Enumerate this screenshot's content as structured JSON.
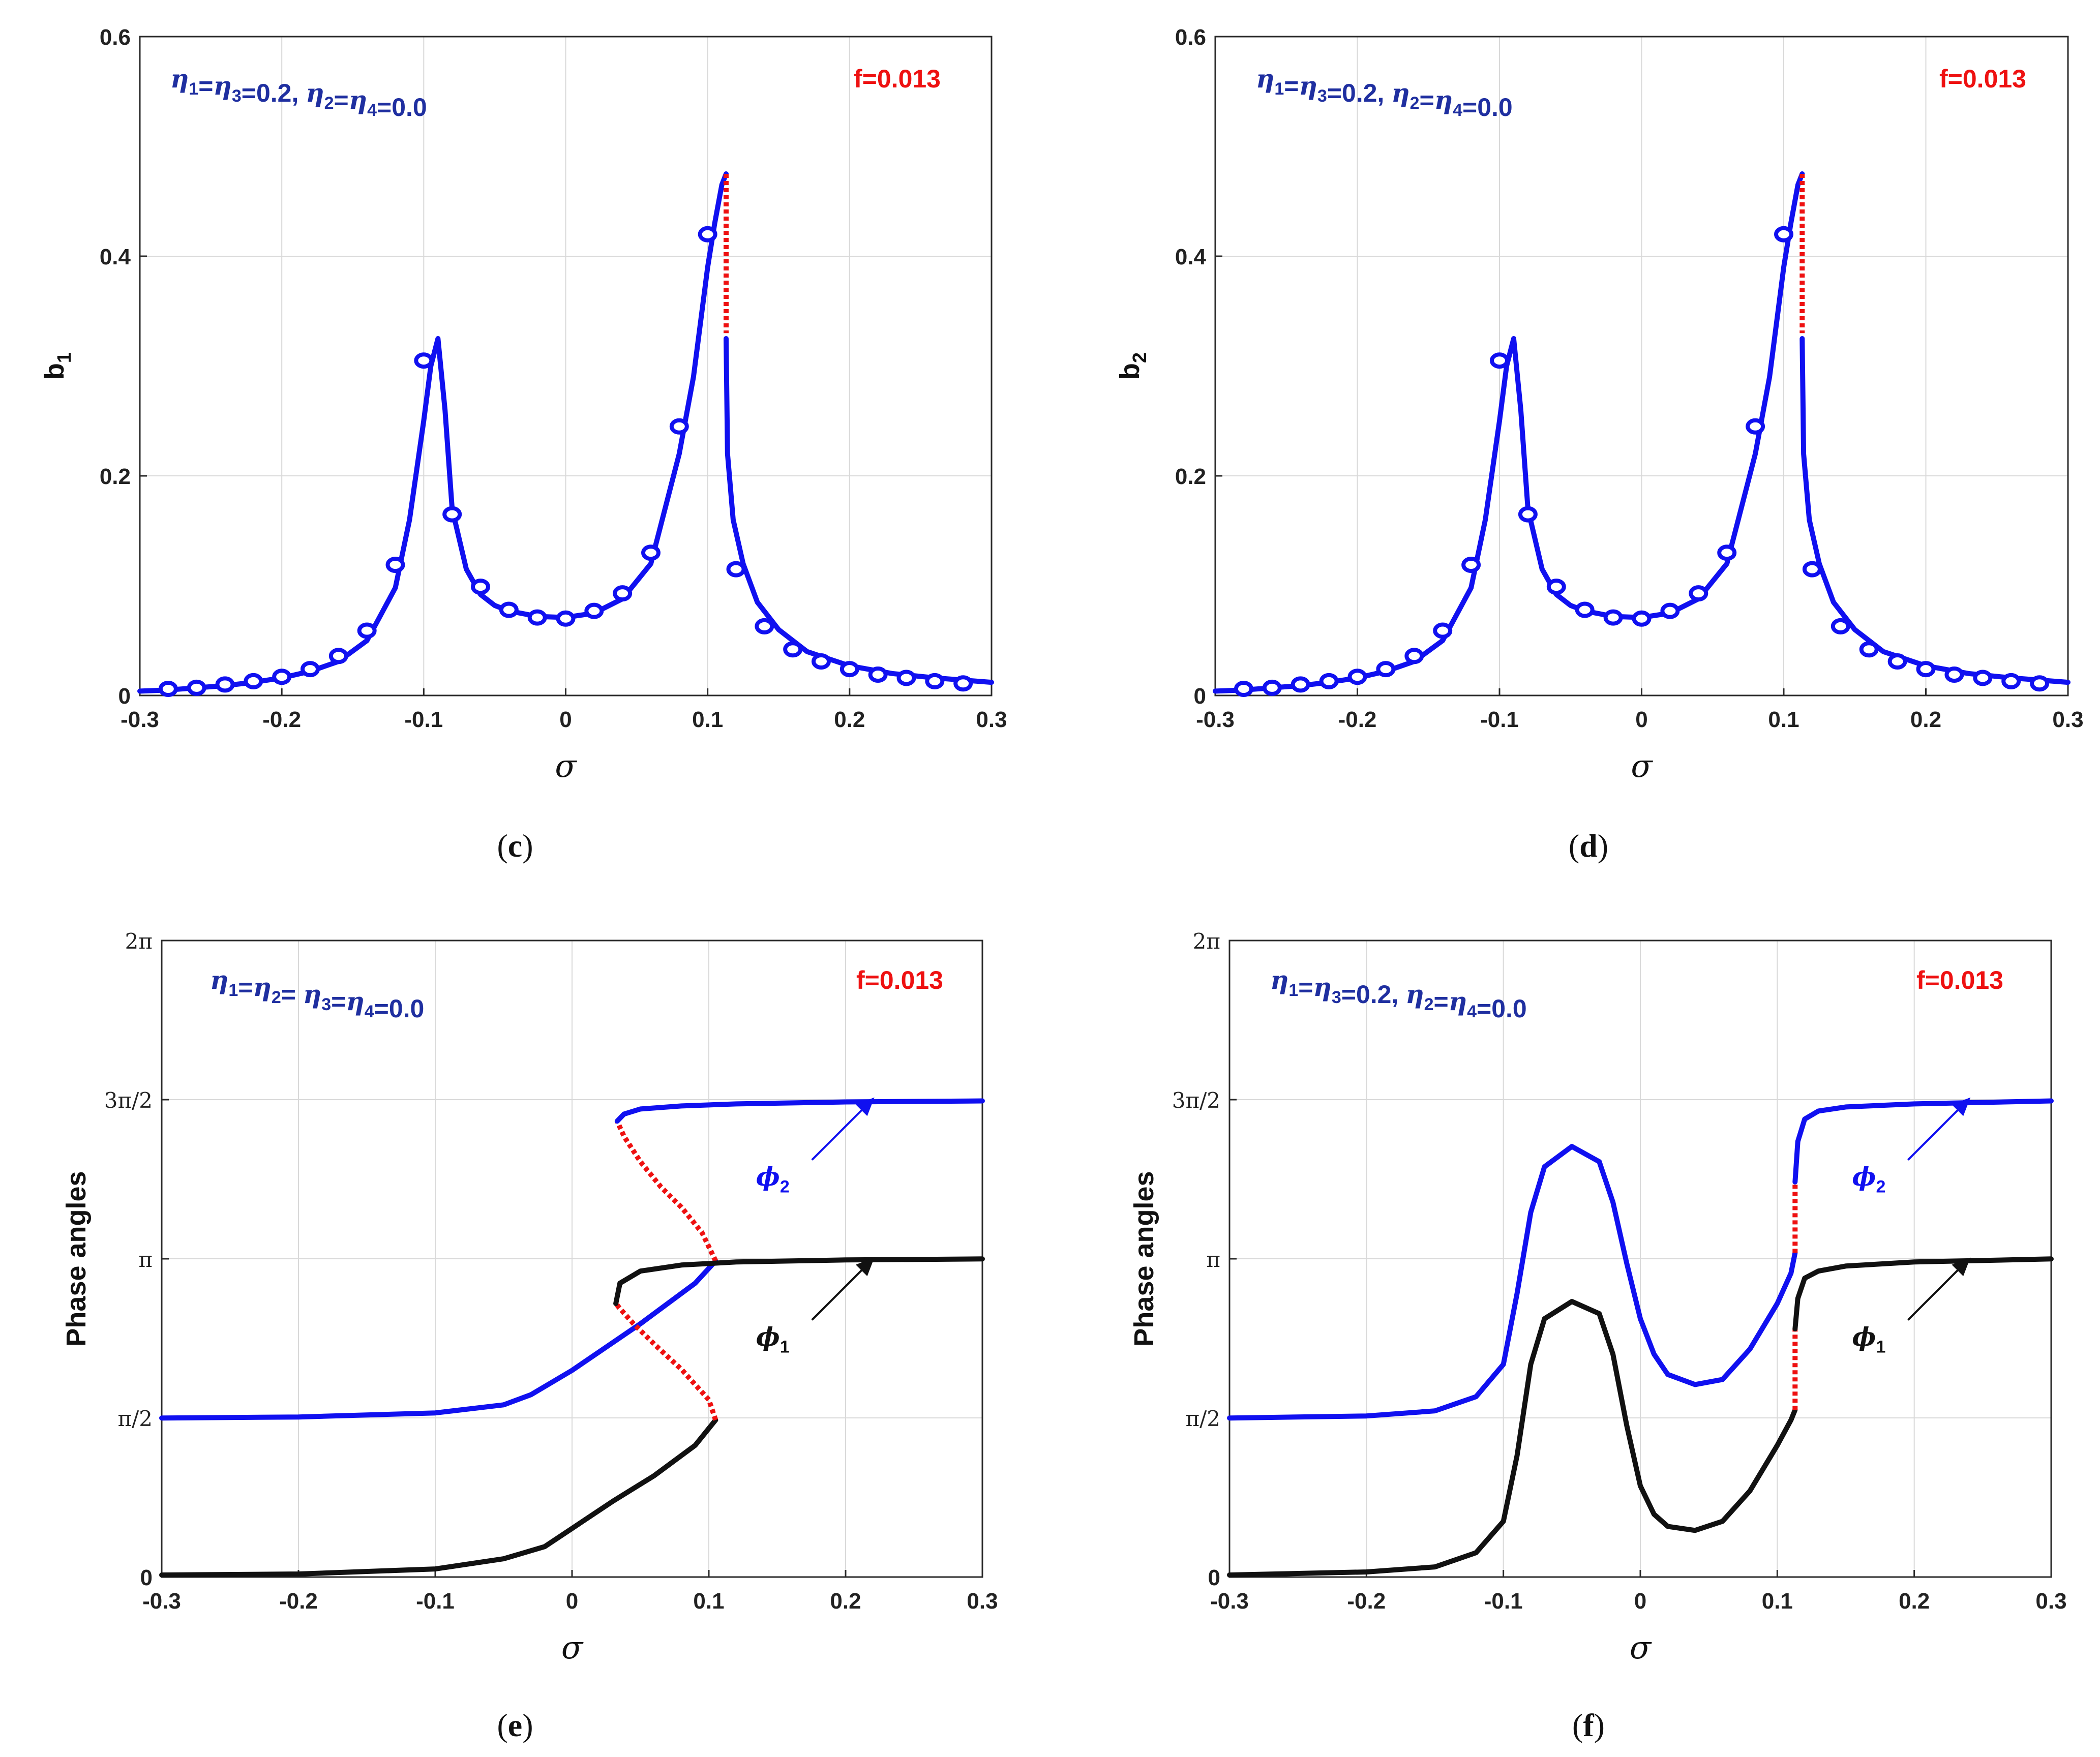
{
  "chart_data": [
    {
      "id": "c",
      "type": "line",
      "caption_letter": "c",
      "ylabel_main": "b",
      "ylabel_sub": "1",
      "xlabel": "σ",
      "xlim": [
        -0.3,
        0.3
      ],
      "ylim": [
        0,
        0.6
      ],
      "xticks": [
        "-0.3",
        "-0.2",
        "-0.1",
        "0",
        "0.1",
        "0.2",
        "0.3"
      ],
      "yticks": [
        "0",
        "0.2",
        "0.4",
        "0.6"
      ],
      "annotation_left": "η1=η3=0.2,  η2=η4=0.0",
      "annotation_right": "f=0.013",
      "series": [
        {
          "name": "stable-branch-1",
          "color": "#1010f0",
          "style": "solid",
          "x": [
            -0.3,
            -0.28,
            -0.26,
            -0.24,
            -0.22,
            -0.2,
            -0.18,
            -0.16,
            -0.14,
            -0.12,
            -0.11,
            -0.1,
            -0.095,
            -0.09,
            -0.085,
            -0.08,
            -0.07,
            -0.06,
            -0.05,
            -0.04,
            -0.02,
            0,
            0.02,
            0.04,
            0.06,
            0.08,
            0.09,
            0.1,
            0.105,
            0.11,
            0.113
          ],
          "y": [
            0.004,
            0.005,
            0.007,
            0.009,
            0.012,
            0.016,
            0.022,
            0.031,
            0.05,
            0.098,
            0.16,
            0.25,
            0.3,
            0.325,
            0.26,
            0.17,
            0.115,
            0.092,
            0.082,
            0.077,
            0.072,
            0.071,
            0.075,
            0.088,
            0.12,
            0.22,
            0.29,
            0.39,
            0.43,
            0.465,
            0.475
          ]
        },
        {
          "name": "unstable-branch",
          "color": "#ee1111",
          "style": "dotted",
          "x": [
            0.113,
            0.113
          ],
          "y": [
            0.475,
            0.33
          ]
        },
        {
          "name": "stable-branch-2",
          "color": "#1010f0",
          "style": "solid",
          "x": [
            0.113,
            0.114,
            0.118,
            0.125,
            0.135,
            0.15,
            0.17,
            0.2,
            0.23,
            0.26,
            0.3
          ],
          "y": [
            0.325,
            0.22,
            0.16,
            0.12,
            0.085,
            0.06,
            0.04,
            0.027,
            0.02,
            0.016,
            0.012
          ]
        },
        {
          "name": "numerical-markers",
          "color": "#1010f0",
          "style": "marker",
          "x": [
            -0.28,
            -0.26,
            -0.24,
            -0.22,
            -0.2,
            -0.18,
            -0.16,
            -0.14,
            -0.12,
            -0.1,
            -0.08,
            -0.06,
            -0.04,
            -0.02,
            0,
            0.02,
            0.04,
            0.06,
            0.08,
            0.1,
            0.12,
            0.14,
            0.16,
            0.18,
            0.2,
            0.22,
            0.24,
            0.26,
            0.28
          ],
          "y": [
            0.006,
            0.007,
            0.01,
            0.013,
            0.017,
            0.024,
            0.036,
            0.059,
            0.119,
            0.305,
            0.165,
            0.099,
            0.078,
            0.071,
            0.07,
            0.077,
            0.093,
            0.13,
            0.245,
            0.42,
            0.115,
            0.063,
            0.042,
            0.031,
            0.024,
            0.019,
            0.016,
            0.013,
            0.011
          ]
        }
      ]
    },
    {
      "id": "d",
      "type": "line",
      "caption_letter": "d",
      "ylabel_main": "b",
      "ylabel_sub": "2",
      "xlabel": "σ",
      "xlim": [
        -0.3,
        0.3
      ],
      "ylim": [
        0,
        0.6
      ],
      "xticks": [
        "-0.3",
        "-0.2",
        "-0.1",
        "0",
        "0.1",
        "0.2",
        "0.3"
      ],
      "yticks": [
        "0",
        "0.2",
        "0.4",
        "0.6"
      ],
      "annotation_left": "η1=η3=0.2,  η2=η4=0.0",
      "annotation_right": "f=0.013",
      "series": [
        {
          "name": "stable-branch-1",
          "color": "#1010f0",
          "style": "solid",
          "x": [
            -0.3,
            -0.28,
            -0.26,
            -0.24,
            -0.22,
            -0.2,
            -0.18,
            -0.16,
            -0.14,
            -0.12,
            -0.11,
            -0.1,
            -0.095,
            -0.09,
            -0.085,
            -0.08,
            -0.07,
            -0.06,
            -0.05,
            -0.04,
            -0.02,
            0,
            0.02,
            0.04,
            0.06,
            0.08,
            0.09,
            0.1,
            0.105,
            0.11,
            0.113
          ],
          "y": [
            0.004,
            0.005,
            0.007,
            0.009,
            0.012,
            0.016,
            0.022,
            0.031,
            0.05,
            0.098,
            0.16,
            0.25,
            0.3,
            0.325,
            0.26,
            0.17,
            0.115,
            0.092,
            0.082,
            0.077,
            0.072,
            0.071,
            0.075,
            0.088,
            0.12,
            0.22,
            0.29,
            0.39,
            0.43,
            0.465,
            0.475
          ]
        },
        {
          "name": "unstable-branch",
          "color": "#ee1111",
          "style": "dotted",
          "x": [
            0.113,
            0.113
          ],
          "y": [
            0.475,
            0.33
          ]
        },
        {
          "name": "stable-branch-2",
          "color": "#1010f0",
          "style": "solid",
          "x": [
            0.113,
            0.114,
            0.118,
            0.125,
            0.135,
            0.15,
            0.17,
            0.2,
            0.23,
            0.26,
            0.3
          ],
          "y": [
            0.325,
            0.22,
            0.16,
            0.12,
            0.085,
            0.06,
            0.04,
            0.027,
            0.02,
            0.016,
            0.012
          ]
        },
        {
          "name": "numerical-markers",
          "color": "#1010f0",
          "style": "marker",
          "x": [
            -0.28,
            -0.26,
            -0.24,
            -0.22,
            -0.2,
            -0.18,
            -0.16,
            -0.14,
            -0.12,
            -0.1,
            -0.08,
            -0.06,
            -0.04,
            -0.02,
            0,
            0.02,
            0.04,
            0.06,
            0.08,
            0.1,
            0.12,
            0.14,
            0.16,
            0.18,
            0.2,
            0.22,
            0.24,
            0.26,
            0.28
          ],
          "y": [
            0.006,
            0.007,
            0.01,
            0.013,
            0.017,
            0.024,
            0.036,
            0.059,
            0.119,
            0.305,
            0.165,
            0.099,
            0.078,
            0.071,
            0.07,
            0.077,
            0.093,
            0.13,
            0.245,
            0.42,
            0.115,
            0.063,
            0.042,
            0.031,
            0.024,
            0.019,
            0.016,
            0.013,
            0.011
          ]
        }
      ]
    },
    {
      "id": "e",
      "type": "line",
      "caption_letter": "e",
      "ylabel": "Phase angles",
      "xlabel": "σ",
      "xlim": [
        -0.3,
        0.3
      ],
      "ylim": [
        0,
        6.2832
      ],
      "ytick_values": [
        0,
        1.5708,
        3.1416,
        4.7124,
        6.2832
      ],
      "xticks": [
        "-0.3",
        "-0.2",
        "-0.1",
        "0",
        "0.1",
        "0.2",
        "0.3"
      ],
      "yticks": [
        "0",
        "π/2",
        "π",
        "3π/2",
        "2π"
      ],
      "annotation_left": "η1=η2= η3=η4=0.0",
      "annotation_right": "f=0.013",
      "arrow_labels": [
        {
          "text": "ϕ2",
          "points_to": [
            0.22,
            4.72
          ]
        },
        {
          "text": "ϕ1",
          "points_to": [
            0.22,
            3.14
          ]
        }
      ],
      "series": [
        {
          "name": "phi2-lower-stable",
          "color": "#1010f0",
          "style": "solid",
          "x": [
            -0.3,
            -0.2,
            -0.1,
            -0.05,
            -0.03,
            0,
            0.05,
            0.09,
            0.105
          ],
          "y": [
            1.57,
            1.58,
            1.62,
            1.7,
            1.8,
            2.04,
            2.5,
            2.9,
            3.12
          ]
        },
        {
          "name": "phi2-unstable",
          "color": "#ee1111",
          "style": "dotted",
          "x": [
            0.105,
            0.095,
            0.08,
            0.065,
            0.05,
            0.038,
            0.033
          ],
          "y": [
            3.12,
            3.4,
            3.65,
            3.85,
            4.1,
            4.35,
            4.5
          ]
        },
        {
          "name": "phi2-upper-stable",
          "color": "#1010f0",
          "style": "solid",
          "x": [
            0.033,
            0.038,
            0.05,
            0.08,
            0.12,
            0.2,
            0.3
          ],
          "y": [
            4.5,
            4.57,
            4.62,
            4.65,
            4.67,
            4.69,
            4.7
          ]
        },
        {
          "name": "phi1-lower-stable",
          "color": "#111111",
          "style": "solid",
          "x": [
            -0.3,
            -0.2,
            -0.1,
            -0.05,
            -0.02,
            0,
            0.03,
            0.06,
            0.09,
            0.105
          ],
          "y": [
            0.02,
            0.03,
            0.08,
            0.18,
            0.3,
            0.48,
            0.75,
            1.0,
            1.3,
            1.55
          ]
        },
        {
          "name": "phi1-unstable",
          "color": "#ee1111",
          "style": "dotted",
          "x": [
            0.105,
            0.1,
            0.08,
            0.06,
            0.045,
            0.035,
            0.032
          ],
          "y": [
            1.55,
            1.75,
            2.05,
            2.3,
            2.5,
            2.65,
            2.7
          ]
        },
        {
          "name": "phi1-upper-stable",
          "color": "#111111",
          "style": "solid",
          "x": [
            0.032,
            0.035,
            0.05,
            0.08,
            0.12,
            0.2,
            0.3
          ],
          "y": [
            2.7,
            2.9,
            3.02,
            3.08,
            3.11,
            3.13,
            3.14
          ]
        }
      ]
    },
    {
      "id": "f",
      "type": "line",
      "caption_letter": "f",
      "ylabel": "Phase angles",
      "xlabel": "σ",
      "xlim": [
        -0.3,
        0.3
      ],
      "ylim": [
        0,
        6.2832
      ],
      "ytick_values": [
        0,
        1.5708,
        3.1416,
        4.7124,
        6.2832
      ],
      "xticks": [
        "-0.3",
        "-0.2",
        "-0.1",
        "0",
        "0.1",
        "0.2",
        "0.3"
      ],
      "yticks": [
        "0",
        "π/2",
        "π",
        "3π/2",
        "2π"
      ],
      "annotation_left": "η1=η3=0.2,  η2=η4=0.0",
      "annotation_right": "f=0.013",
      "arrow_labels": [
        {
          "text": "ϕ2",
          "points_to": [
            0.24,
            4.72
          ]
        },
        {
          "text": "ϕ1",
          "points_to": [
            0.24,
            3.14
          ]
        }
      ],
      "series": [
        {
          "name": "phi2-stable-1",
          "color": "#1010f0",
          "style": "solid",
          "x": [
            -0.3,
            -0.2,
            -0.15,
            -0.12,
            -0.1,
            -0.09,
            -0.08,
            -0.07,
            -0.05,
            -0.03,
            -0.02,
            -0.01,
            0,
            0.01,
            0.02,
            0.04,
            0.06,
            0.08,
            0.1,
            0.11,
            0.113
          ],
          "y": [
            1.57,
            1.59,
            1.64,
            1.78,
            2.1,
            2.8,
            3.6,
            4.05,
            4.25,
            4.1,
            3.7,
            3.1,
            2.55,
            2.2,
            2.0,
            1.9,
            1.95,
            2.25,
            2.7,
            3.0,
            3.2
          ]
        },
        {
          "name": "phi2-unstable",
          "color": "#ee1111",
          "style": "dotted",
          "x": [
            0.113,
            0.113
          ],
          "y": [
            3.2,
            3.9
          ]
        },
        {
          "name": "phi2-stable-2",
          "color": "#1010f0",
          "style": "solid",
          "x": [
            0.113,
            0.115,
            0.12,
            0.13,
            0.15,
            0.2,
            0.3
          ],
          "y": [
            3.9,
            4.3,
            4.52,
            4.6,
            4.64,
            4.67,
            4.7
          ]
        },
        {
          "name": "phi1-stable-1",
          "color": "#111111",
          "style": "solid",
          "x": [
            -0.3,
            -0.2,
            -0.15,
            -0.12,
            -0.1,
            -0.09,
            -0.08,
            -0.07,
            -0.05,
            -0.03,
            -0.02,
            -0.01,
            0,
            0.01,
            0.02,
            0.04,
            0.06,
            0.08,
            0.1,
            0.11,
            0.113
          ],
          "y": [
            0.02,
            0.05,
            0.1,
            0.24,
            0.55,
            1.2,
            2.1,
            2.55,
            2.72,
            2.6,
            2.2,
            1.5,
            0.9,
            0.62,
            0.5,
            0.46,
            0.55,
            0.85,
            1.3,
            1.55,
            1.65
          ]
        },
        {
          "name": "phi1-unstable",
          "color": "#ee1111",
          "style": "dotted",
          "x": [
            0.113,
            0.113
          ],
          "y": [
            1.65,
            2.45
          ]
        },
        {
          "name": "phi1-stable-2",
          "color": "#111111",
          "style": "solid",
          "x": [
            0.113,
            0.115,
            0.12,
            0.13,
            0.15,
            0.2,
            0.3
          ],
          "y": [
            2.45,
            2.75,
            2.95,
            3.02,
            3.07,
            3.11,
            3.14
          ]
        }
      ]
    }
  ]
}
